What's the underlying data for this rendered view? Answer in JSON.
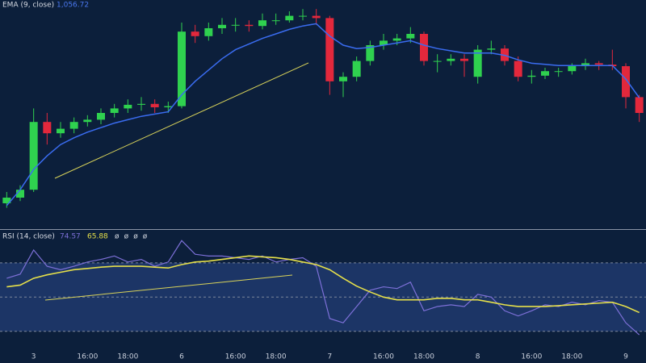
{
  "chart_data": [
    {
      "type": "candlestick",
      "title": "EMA (9, close)",
      "last_value_label": "1,056.72",
      "categories": [
        null,
        null,
        "3",
        null,
        null,
        null,
        "16:00",
        null,
        null,
        "18:00",
        null,
        null,
        null,
        "6",
        null,
        null,
        null,
        "16:00",
        null,
        null,
        "18:00",
        null,
        null,
        null,
        "7",
        null,
        null,
        null,
        "16:00",
        null,
        null,
        "18:00",
        null,
        null,
        null,
        "8",
        null,
        null,
        null,
        "16:00",
        null,
        null,
        "18:00",
        null,
        null,
        null,
        "9",
        null
      ],
      "open": [
        1010,
        1012.5,
        1016,
        1046,
        1041,
        1043,
        1046,
        1047,
        1050,
        1052,
        1053.6,
        1054,
        1052.5,
        1053,
        1086,
        1084,
        1087.5,
        1089,
        1089,
        1088.5,
        1091,
        1091,
        1093,
        1093,
        1092,
        1064,
        1066,
        1073,
        1080,
        1082,
        1083,
        1085,
        1073,
        1073,
        1074,
        1066,
        1078,
        1078.5,
        1073,
        1066,
        1066.5,
        1068.5,
        1068.5,
        1070.7,
        1072,
        1071.4,
        1070.7,
        1057
      ],
      "high": [
        1015,
        1018,
        1052,
        1050,
        1046,
        1048,
        1049,
        1052,
        1054,
        1056,
        1057,
        1056,
        1055,
        1090,
        1089,
        1090,
        1092,
        1092,
        1091,
        1094,
        1094,
        1095,
        1096,
        1096,
        1093,
        1068,
        1075,
        1082,
        1085,
        1085,
        1088,
        1086,
        1076,
        1076,
        1076,
        1080,
        1082,
        1080,
        1075,
        1069,
        1070,
        1070,
        1072,
        1074,
        1073,
        1078,
        1072,
        1058
      ],
      "low": [
        1008,
        1011,
        1015,
        1036,
        1039,
        1041,
        1044,
        1045,
        1048,
        1050,
        1051,
        1050,
        1050,
        1052,
        1081,
        1082,
        1085,
        1086,
        1086,
        1087,
        1089,
        1090,
        1091,
        1089,
        1058,
        1057,
        1064,
        1071,
        1078,
        1080,
        1081,
        1071,
        1068,
        1071,
        1066,
        1063,
        1076,
        1071,
        1064,
        1063,
        1065,
        1066,
        1067,
        1069,
        1069,
        1069,
        1052,
        1046
      ],
      "close": [
        1012.5,
        1016,
        1046,
        1041,
        1043,
        1046,
        1047,
        1050,
        1052,
        1053.6,
        1054,
        1052.5,
        1053,
        1086,
        1084,
        1087.5,
        1089,
        1089,
        1088.5,
        1091,
        1091,
        1093,
        1093,
        1092,
        1064,
        1066,
        1073,
        1080,
        1082,
        1083,
        1085,
        1073,
        1073,
        1074,
        1073,
        1078,
        1078.5,
        1073,
        1066,
        1066.5,
        1068.5,
        1068.5,
        1070.7,
        1072,
        1071.4,
        1070.7,
        1057,
        1050
      ],
      "up_color": "#2fd14f",
      "down_color": "#e3283c",
      "series": [
        {
          "name": "EMA (9, close)",
          "color": "#3a6cf0",
          "values": [
            1009,
            1016,
            1025,
            1031,
            1036,
            1039,
            1041.5,
            1043.5,
            1045.5,
            1047,
            1048.5,
            1049.5,
            1050.5,
            1058,
            1064,
            1069,
            1074,
            1078,
            1080.5,
            1083,
            1085,
            1087,
            1088.5,
            1089.5,
            1084,
            1080,
            1078.5,
            1079,
            1080,
            1081,
            1082,
            1080,
            1078.5,
            1077.5,
            1076.5,
            1076.5,
            1076.5,
            1075.5,
            1073.5,
            1072,
            1071.5,
            1071,
            1071,
            1071,
            1071,
            1071,
            1065,
            1056.72
          ]
        }
      ],
      "ylim": [
        1000,
        1100
      ]
    },
    {
      "type": "line",
      "title": "RSI (14, close)",
      "legend_values": [
        "74.57",
        "65.88",
        "ø",
        "ø",
        "ø",
        "ø"
      ],
      "series": [
        {
          "name": "RSI",
          "color": "#7d70d8",
          "values": [
            61,
            63.4,
            77.5,
            68,
            66,
            68,
            70.5,
            72,
            74,
            70.5,
            72,
            68,
            70.5,
            83,
            75,
            74,
            74,
            73,
            72,
            74,
            70.5,
            72,
            73,
            68,
            37.5,
            35,
            44.5,
            54,
            56,
            55,
            58.7,
            42,
            44.5,
            45.5,
            44.5,
            51.6,
            50,
            42,
            39,
            42,
            45.5,
            44.5,
            47,
            45.5,
            48,
            47,
            35,
            28
          ]
        },
        {
          "name": "RSI-based MA",
          "color": "#e6e04a",
          "values": [
            56,
            57,
            61,
            63,
            64.5,
            66,
            66.7,
            67.5,
            68,
            68,
            68,
            67.5,
            67,
            69,
            70.5,
            71,
            72,
            73,
            74,
            73.5,
            73,
            72,
            70.5,
            69,
            66,
            61,
            56.4,
            53,
            50,
            48.4,
            48.4,
            48.4,
            49.3,
            49.3,
            48.4,
            48.4,
            47,
            45.5,
            44.5,
            44.5,
            44.5,
            45,
            45.5,
            46,
            46.5,
            47,
            44.5,
            41
          ]
        }
      ],
      "levels": [
        30,
        50,
        70
      ],
      "band_color": "#1c3566",
      "ylim": [
        20,
        85
      ]
    }
  ]
}
